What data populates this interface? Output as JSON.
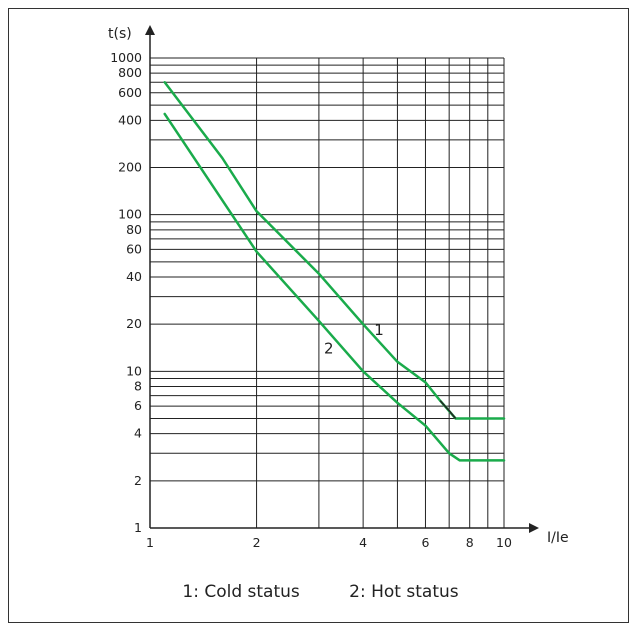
{
  "chart_data": {
    "type": "line",
    "x_scale": "log",
    "y_scale": "log",
    "xlim": [
      1,
      10
    ],
    "ylim": [
      1,
      1000
    ],
    "xlabel": "I/Ie",
    "ylabel": "t(s)",
    "x_ticks": [
      {
        "value": 1,
        "label": "1"
      },
      {
        "value": 2,
        "label": "2"
      },
      {
        "value": 4,
        "label": "4"
      },
      {
        "value": 6,
        "label": "6"
      },
      {
        "value": 8,
        "label": "8"
      },
      {
        "value": 10,
        "label": "10"
      }
    ],
    "y_ticks": [
      {
        "value": 1,
        "label": "1"
      },
      {
        "value": 2,
        "label": "2"
      },
      {
        "value": 4,
        "label": "4"
      },
      {
        "value": 6,
        "label": "6"
      },
      {
        "value": 8,
        "label": "8"
      },
      {
        "value": 10,
        "label": "10"
      },
      {
        "value": 20,
        "label": "20"
      },
      {
        "value": 40,
        "label": "40"
      },
      {
        "value": 60,
        "label": "60"
      },
      {
        "value": 80,
        "label": "80"
      },
      {
        "value": 100,
        "label": "100"
      },
      {
        "value": 200,
        "label": "200"
      },
      {
        "value": 400,
        "label": "400"
      },
      {
        "value": 600,
        "label": "600"
      },
      {
        "value": 800,
        "label": "800"
      },
      {
        "value": 1000,
        "label": "1000"
      }
    ],
    "x_grid": [
      2,
      3,
      4,
      5,
      6,
      7,
      8,
      9,
      10
    ],
    "y_grid": [
      2,
      3,
      4,
      5,
      6,
      7,
      8,
      9,
      10,
      20,
      30,
      40,
      50,
      60,
      70,
      80,
      90,
      100,
      200,
      300,
      400,
      500,
      600,
      700,
      800,
      900,
      1000
    ],
    "series": [
      {
        "name": "1",
        "color": "#1aab4b",
        "points": [
          [
            1.1,
            700
          ],
          [
            1.6,
            230
          ],
          [
            2.0,
            105
          ],
          [
            3.0,
            42
          ],
          [
            4.0,
            20
          ],
          [
            5.0,
            11.5
          ],
          [
            6.0,
            8.5
          ],
          [
            6.6,
            6.5
          ],
          [
            7.3,
            5.0
          ],
          [
            8.0,
            5.0
          ],
          [
            10.0,
            5.0
          ]
        ]
      },
      {
        "name": "2",
        "color": "#1aab4b",
        "points": [
          [
            1.1,
            440
          ],
          [
            2.0,
            58
          ],
          [
            3.0,
            21
          ],
          [
            4.0,
            10
          ],
          [
            5.0,
            6.3
          ],
          [
            6.0,
            4.5
          ],
          [
            7.0,
            3.0
          ],
          [
            7.5,
            2.7
          ],
          [
            8.0,
            2.7
          ],
          [
            10.0,
            2.7
          ]
        ]
      }
    ],
    "accent_segment": {
      "color": "#222222",
      "points": [
        [
          6.6,
          6.5
        ],
        [
          7.0,
          5.6
        ],
        [
          7.3,
          5.0
        ]
      ]
    },
    "curve_labels": [
      {
        "text": "1",
        "x": 4.3,
        "y": 17
      },
      {
        "text": "2",
        "x": 3.1,
        "y": 13
      }
    ],
    "legend": [
      "1: Cold status",
      "2: Hot status"
    ]
  }
}
